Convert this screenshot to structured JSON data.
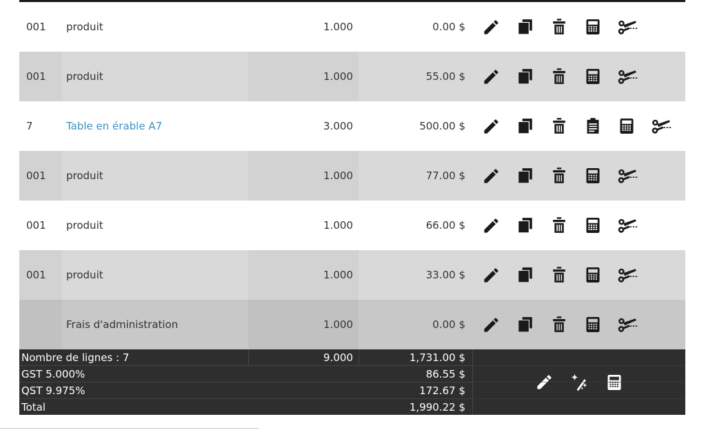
{
  "colors": {
    "link": "#3d90c6",
    "text": "#333333",
    "row_alt": "#d9d9d9",
    "row_fees": "#c8c8c8",
    "summary_bg": "#2e2e2e",
    "summary_border": "#454545",
    "top_border": "#1b1b1b",
    "icon": "#1a1a1a"
  },
  "rows": [
    {
      "code": "001",
      "description": "produit",
      "quantity": "1.000",
      "amount": "0.00 $",
      "variant": "white",
      "is_link": false,
      "icons": [
        "pencil",
        "copy",
        "trash",
        "calculator",
        "scissors"
      ]
    },
    {
      "code": "001",
      "description": "produit",
      "quantity": "1.000",
      "amount": "55.00 $",
      "variant": "alt",
      "is_link": false,
      "icons": [
        "pencil",
        "copy",
        "trash",
        "calculator",
        "scissors"
      ]
    },
    {
      "code": "7",
      "description": "Table en érable A7",
      "quantity": "3.000",
      "amount": "500.00 $",
      "variant": "white",
      "is_link": true,
      "icons": [
        "pencil",
        "copy",
        "trash",
        "clipboard",
        "calculator",
        "scissors"
      ]
    },
    {
      "code": "001",
      "description": "produit",
      "quantity": "1.000",
      "amount": "77.00 $",
      "variant": "alt",
      "is_link": false,
      "icons": [
        "pencil",
        "copy",
        "trash",
        "calculator",
        "scissors"
      ]
    },
    {
      "code": "001",
      "description": "produit",
      "quantity": "1.000",
      "amount": "66.00 $",
      "variant": "white",
      "is_link": false,
      "icons": [
        "pencil",
        "copy",
        "trash",
        "calculator",
        "scissors"
      ]
    },
    {
      "code": "001",
      "description": "produit",
      "quantity": "1.000",
      "amount": "33.00 $",
      "variant": "alt",
      "is_link": false,
      "icons": [
        "pencil",
        "copy",
        "trash",
        "calculator",
        "scissors"
      ]
    },
    {
      "code": "",
      "description": "Frais d'administration",
      "quantity": "1.000",
      "amount": "0.00 $",
      "variant": "fees",
      "is_link": false,
      "icons": [
        "pencil",
        "copy",
        "trash",
        "calculator",
        "scissors"
      ]
    }
  ],
  "summary": {
    "rows": [
      {
        "label": "Nombre de lignes : 7",
        "quantity": "9.000",
        "amount": "1,731.00 $"
      },
      {
        "label": "GST 5.000%",
        "quantity": "",
        "amount": "86.55 $"
      },
      {
        "label": "QST 9.975%",
        "quantity": "",
        "amount": "172.67 $"
      },
      {
        "label": "Total",
        "quantity": "",
        "amount": "1,990.22 $"
      }
    ],
    "icons": [
      "pencil",
      "magic-wand",
      "calculator"
    ]
  }
}
